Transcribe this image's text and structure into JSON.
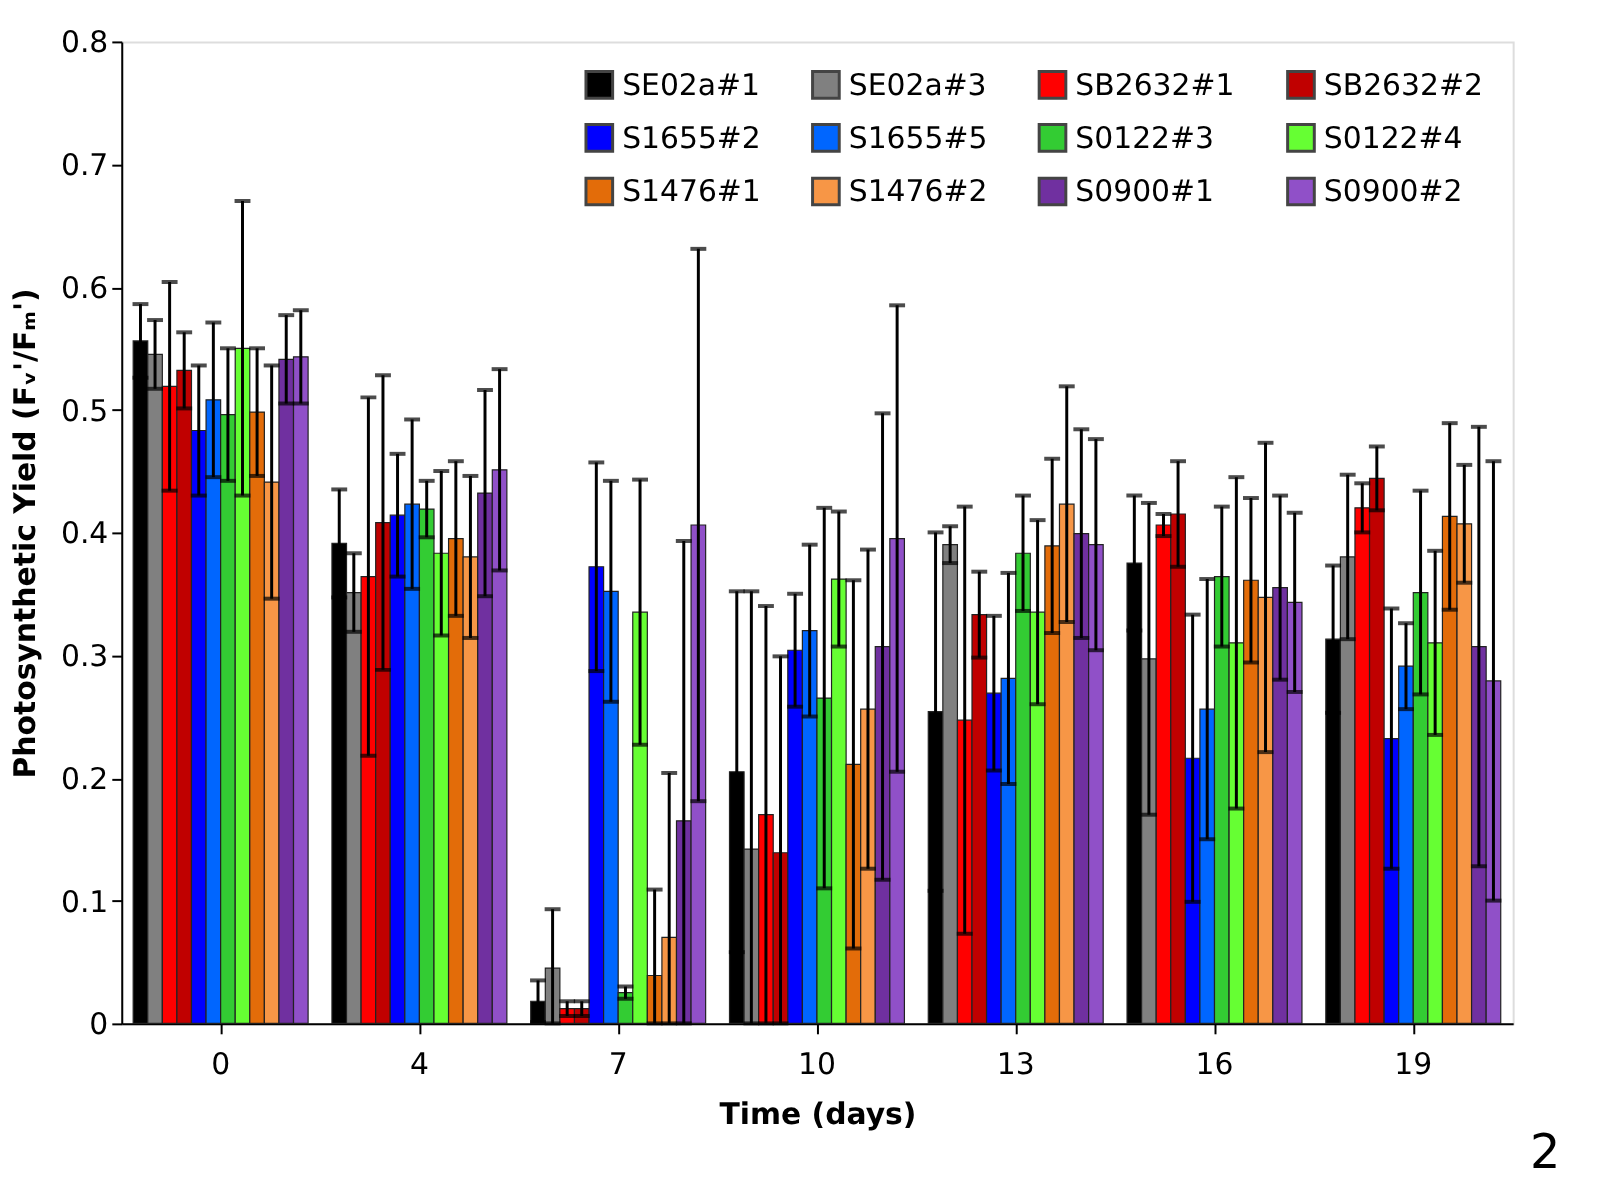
{
  "chart_data": {
    "type": "bar",
    "xlabel": "Time (days)",
    "ylabel": "Photosynthetic Yield (Fᵥ'/Fₘ')",
    "categories": [
      "0",
      "4",
      "7",
      "10",
      "13",
      "16",
      "19"
    ],
    "ylim": [
      0,
      0.8
    ],
    "yticks": [
      0,
      0.1,
      0.2,
      0.3,
      0.4,
      0.5,
      0.6,
      0.7,
      0.8
    ],
    "grid": false,
    "legend": "top right",
    "annotations": [
      "2"
    ],
    "series": [
      {
        "name": "SE02a#1",
        "color": "#000000",
        "values": [
          0.556,
          0.391,
          0.018,
          0.205,
          0.254,
          0.375,
          0.313
        ],
        "errors": [
          0.03,
          0.044,
          0.017,
          0.147,
          0.146,
          0.055,
          0.06
        ]
      },
      {
        "name": "SE02a#3",
        "color": "#808080",
        "values": [
          0.545,
          0.351,
          0.045,
          0.142,
          0.39,
          0.297,
          0.38
        ],
        "errors": [
          0.028,
          0.032,
          [
            0,
            0.093
          ],
          [
            0,
            0.352
          ],
          0.015,
          0.127,
          0.067
        ]
      },
      {
        "name": "SB2632#1",
        "color": "#ff0000",
        "values": [
          0.519,
          0.364,
          0.012,
          0.17,
          0.247,
          0.406,
          0.42
        ],
        "errors": [
          0.085,
          0.146,
          0.006,
          0.17,
          0.174,
          0.009,
          0.02
        ]
      },
      {
        "name": "SB2632#2",
        "color": "#c00000",
        "values": [
          0.532,
          0.408,
          0.012,
          0.139,
          0.333,
          0.415,
          0.444
        ],
        "errors": [
          0.031,
          0.12,
          0.006,
          [
            0,
            0.299
          ],
          0.035,
          0.043,
          0.026
        ]
      },
      {
        "name": "S1655#2",
        "color": "#0000ff",
        "values": [
          0.483,
          0.414,
          0.372,
          0.304,
          0.269,
          0.216,
          0.232
        ],
        "errors": [
          0.053,
          0.05,
          0.085,
          0.046,
          0.063,
          0.117,
          0.106
        ]
      },
      {
        "name": "S1655#5",
        "color": "#0066ff",
        "values": [
          0.508,
          0.423,
          0.352,
          0.32,
          0.281,
          0.256,
          0.291
        ],
        "errors": [
          0.063,
          0.069,
          0.09,
          0.07,
          0.086,
          0.106,
          0.035
        ]
      },
      {
        "name": "S0122#3",
        "color": "#33cc33",
        "values": [
          0.496,
          0.419,
          0.025,
          0.265,
          0.383,
          0.364,
          0.351
        ],
        "errors": [
          0.054,
          0.023,
          0.005,
          0.155,
          0.047,
          0.057,
          0.083
        ]
      },
      {
        "name": "S0122#4",
        "color": "#66ff33",
        "values": [
          0.55,
          0.383,
          0.335,
          0.362,
          0.335,
          0.31,
          0.31
        ],
        "errors": [
          0.12,
          0.067,
          0.108,
          0.055,
          0.075,
          0.135,
          0.075
        ]
      },
      {
        "name": "S1476#1",
        "color": "#e36c09",
        "values": [
          0.498,
          0.395,
          0.039,
          0.211,
          0.389,
          0.361,
          0.413
        ],
        "errors": [
          0.052,
          0.063,
          [
            0,
            0.109
          ],
          0.15,
          0.071,
          0.067,
          0.076
        ]
      },
      {
        "name": "S1476#2",
        "color": "#f79646",
        "values": [
          0.441,
          0.38,
          0.07,
          0.256,
          0.423,
          0.347,
          0.407
        ],
        "errors": [
          0.095,
          0.066,
          [
            0,
            0.204
          ],
          0.13,
          0.096,
          0.126,
          0.048
        ]
      },
      {
        "name": "S0900#1",
        "color": "#7030a0",
        "values": [
          0.541,
          0.432,
          0.165,
          0.307,
          0.399,
          0.355,
          0.307
        ],
        "errors": [
          0.036,
          0.084,
          [
            0,
            0.393
          ],
          0.19,
          0.085,
          0.075,
          0.179
        ]
      },
      {
        "name": "S0900#2",
        "color": "#9050c8",
        "values": [
          0.543,
          0.451,
          0.406,
          0.395,
          0.39,
          0.343,
          0.279
        ],
        "errors": [
          0.038,
          0.082,
          0.225,
          0.19,
          0.086,
          0.073,
          0.179
        ]
      }
    ]
  }
}
